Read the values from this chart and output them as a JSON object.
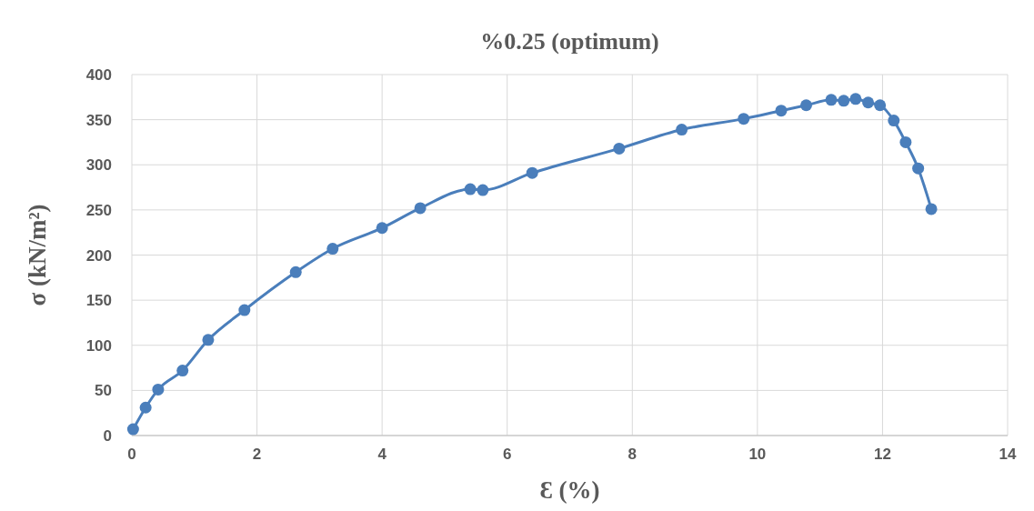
{
  "chart_data": {
    "type": "line",
    "title": "%0.25 (optimum)",
    "xlabel": "Ɛ (%)",
    "ylabel": "σ (kN/m²)",
    "x": [
      0.02,
      0.22,
      0.42,
      0.81,
      1.22,
      1.8,
      2.62,
      3.21,
      4.0,
      4.61,
      5.41,
      5.61,
      6.4,
      7.79,
      8.79,
      9.78,
      10.38,
      10.78,
      11.18,
      11.38,
      11.57,
      11.77,
      11.96,
      12.18,
      12.37,
      12.57,
      12.78
    ],
    "series": [
      {
        "color": "#4a7ebb",
        "values": [
          7,
          31,
          51,
          72,
          106,
          139,
          181,
          207,
          230,
          252,
          273,
          272,
          291,
          318,
          339,
          351,
          360,
          366,
          372,
          371,
          373,
          369,
          366,
          349,
          325,
          296,
          251
        ]
      }
    ],
    "xlim": [
      0,
      14
    ],
    "xticks": [
      0,
      2,
      4,
      6,
      8,
      10,
      12,
      14
    ],
    "ylim": [
      0,
      400
    ],
    "yticks": [
      0,
      50,
      100,
      150,
      200,
      250,
      300,
      350,
      400
    ],
    "grid": true,
    "marker": "circle",
    "line_style": "solid"
  }
}
